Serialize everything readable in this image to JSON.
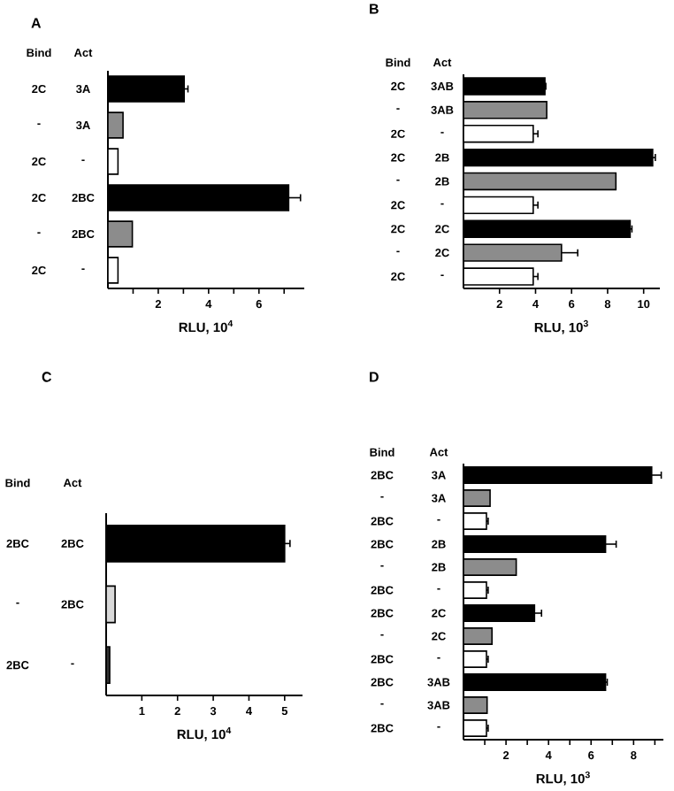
{
  "chart_data": [
    {
      "type": "bar",
      "orientation": "horizontal",
      "title": "A",
      "xlabel": "RLU, 10$^{4}$",
      "categories": [
        "3A",
        "3A",
        "-",
        "2BC",
        "2BC",
        "-"
      ],
      "colors": [
        "#000000",
        "#8c8c8c",
        "#ffffff",
        "#000000",
        "#8c8c8c",
        "#ffffff"
      ],
      "values": [
        3.03,
        0.6,
        0.4,
        7.18,
        0.97,
        0.4
      ],
      "errors": [
        0.15,
        null,
        null,
        0.47,
        null,
        null
      ],
      "xlim": [
        0,
        7.8
      ],
      "xticks": [
        {
          "value": 1,
          "label": null
        },
        2,
        {
          "value": 3,
          "label": null
        },
        4,
        {
          "value": 5,
          "label": null
        },
        6,
        {
          "value": 7,
          "label": null
        }
      ],
      "annotations": [
        "Bind",
        "Act",
        "2C",
        "-",
        "2C",
        "2C",
        "-",
        "2C"
      ]
    },
    {
      "type": "bar",
      "orientation": "horizontal",
      "title": "B",
      "xlabel": "RLU, 10$^{3}$",
      "categories": [
        "3AB",
        "3AB",
        "-",
        "2B",
        "2B",
        "-",
        "2C",
        "2C",
        "-"
      ],
      "colors": [
        "#000000",
        "#8c8c8c",
        "#ffffff",
        "#000000",
        "#8c8c8c",
        "#ffffff",
        "#000000",
        "#8c8c8c",
        "#ffffff"
      ],
      "values": [
        4.52,
        4.62,
        3.87,
        10.5,
        8.46,
        3.87,
        9.25,
        5.44,
        3.87
      ],
      "errors": [
        0.05,
        null,
        0.26,
        0.15,
        null,
        0.26,
        0.1,
        0.9,
        0.26
      ],
      "xlim": [
        0,
        10.9
      ],
      "xticks": [
        2,
        4,
        6,
        8,
        10
      ],
      "annotations": [
        "Bind",
        "Act",
        "2C",
        "-",
        "2C",
        "2C",
        "-",
        "2C",
        "2C",
        "-",
        "2C"
      ]
    },
    {
      "type": "bar",
      "orientation": "horizontal",
      "title": "C",
      "xlabel": "RLU, 10$^{4}$",
      "categories": [
        "2BC",
        "2BC",
        "-"
      ],
      "colors": [
        "#000000",
        "#d9d9d9",
        "#333333"
      ],
      "values": [
        5.0,
        0.25,
        0.1
      ],
      "errors": [
        0.15,
        null,
        null
      ],
      "xlim": [
        0,
        5.5
      ],
      "xticks": [
        1,
        2,
        3,
        4,
        5
      ],
      "annotations": [
        "Bind",
        "Act",
        "2BC",
        "-",
        "2BC"
      ]
    },
    {
      "type": "bar",
      "orientation": "horizontal",
      "title": "D",
      "xlabel": "RLU, 10$^{3}$",
      "categories": [
        "3A",
        "3A",
        "-",
        "2B",
        "2B",
        "-",
        "2C",
        "2C",
        "-",
        "3AB",
        "3AB",
        "-"
      ],
      "colors": [
        "#000000",
        "#8c8c8c",
        "#ffffff",
        "#000000",
        "#8c8c8c",
        "#ffffff",
        "#000000",
        "#8c8c8c",
        "#ffffff",
        "#000000",
        "#8c8c8c",
        "#ffffff"
      ],
      "values": [
        8.85,
        1.25,
        1.08,
        6.68,
        2.48,
        1.08,
        3.34,
        1.34,
        1.08,
        6.68,
        1.11,
        1.08
      ],
      "errors": [
        0.45,
        null,
        0.08,
        0.5,
        null,
        0.08,
        0.33,
        null,
        0.08,
        0.08,
        null,
        0.08
      ],
      "xlim": [
        0,
        9.4
      ],
      "xticks": [
        {
          "value": 1,
          "label": null
        },
        2,
        {
          "value": 3,
          "label": null
        },
        4,
        {
          "value": 5,
          "label": null
        },
        6,
        {
          "value": 7,
          "label": null
        },
        8,
        {
          "value": 9,
          "label": null
        }
      ],
      "annotations": [
        "Bind",
        "Act",
        "2BC",
        "-",
        "2BC",
        "2BC",
        "-",
        "2BC",
        "2BC",
        "-",
        "2BC",
        "2BC",
        "-",
        "2BC"
      ]
    }
  ]
}
